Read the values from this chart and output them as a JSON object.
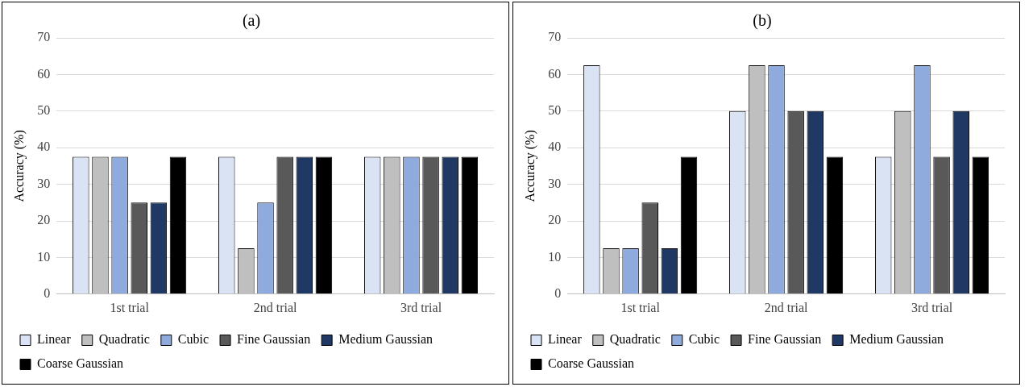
{
  "chart_data": [
    {
      "type": "bar",
      "title": "(a)",
      "ylabel": "Accuracy (%)",
      "categories": [
        "1st trial",
        "2nd trial",
        "3rd trial"
      ],
      "ylim": [
        0,
        70
      ],
      "yticks": [
        0,
        10,
        20,
        30,
        40,
        50,
        60,
        70
      ],
      "grid": "y",
      "legend": "bottom",
      "series": [
        {
          "name": "Linear",
          "color": "#dae3f3",
          "values": [
            37.5,
            37.5,
            37.5
          ]
        },
        {
          "name": "Quadratic",
          "color": "#bfbfbf",
          "values": [
            37.5,
            12.5,
            37.5
          ]
        },
        {
          "name": "Cubic",
          "color": "#8faadc",
          "values": [
            37.5,
            25,
            37.5
          ]
        },
        {
          "name": "Fine Gaussian",
          "color": "#595959",
          "values": [
            25,
            37.5,
            37.5
          ]
        },
        {
          "name": "Medium Gaussian",
          "color": "#203864",
          "values": [
            25,
            37.5,
            37.5
          ]
        },
        {
          "name": "Coarse Gaussian",
          "color": "#000000",
          "values": [
            37.5,
            37.5,
            37.5
          ]
        }
      ]
    },
    {
      "type": "bar",
      "title": "(b)",
      "ylabel": "Accuracy (%)",
      "categories": [
        "1st trial",
        "2nd trial",
        "3rd trial"
      ],
      "ylim": [
        0,
        70
      ],
      "yticks": [
        0,
        10,
        20,
        30,
        40,
        50,
        60,
        70
      ],
      "grid": "y",
      "legend": "bottom",
      "series": [
        {
          "name": "Linear",
          "color": "#dae3f3",
          "values": [
            62.5,
            50,
            37.5
          ]
        },
        {
          "name": "Quadratic",
          "color": "#bfbfbf",
          "values": [
            12.5,
            62.5,
            50
          ]
        },
        {
          "name": "Cubic",
          "color": "#8faadc",
          "values": [
            12.5,
            62.5,
            62.5
          ]
        },
        {
          "name": "Fine Gaussian",
          "color": "#595959",
          "values": [
            25,
            50,
            37.5
          ]
        },
        {
          "name": "Medium Gaussian",
          "color": "#203864",
          "values": [
            12.5,
            50,
            50
          ]
        },
        {
          "name": "Coarse Gaussian",
          "color": "#000000",
          "values": [
            37.5,
            37.5,
            37.5
          ]
        }
      ]
    }
  ]
}
